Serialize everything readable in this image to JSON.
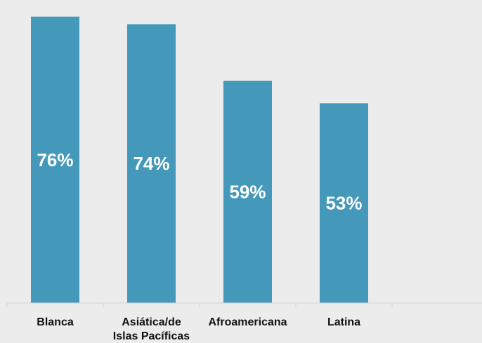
{
  "chart_data": {
    "type": "bar",
    "categories": [
      "Blanca",
      "Asiática/de Islas Pacíficas",
      "Afroamericana",
      "Latina"
    ],
    "category_lines": [
      [
        "Blanca"
      ],
      [
        "Asiática/de",
        "Islas Pacíficas"
      ],
      [
        "Afroamericana"
      ],
      [
        "Latina"
      ]
    ],
    "values": [
      76,
      74,
      59,
      53
    ],
    "data_labels": [
      "76%",
      "74%",
      "59%",
      "53%"
    ],
    "ylim": [
      0,
      78
    ],
    "grid": false,
    "legend": "none",
    "title": "",
    "xlabel": "",
    "ylabel": "",
    "colors": {
      "bar": "#4499ba",
      "background": "#ececec",
      "label_text": "#ffffff",
      "axis_line": "#d4d4d4",
      "category_text": "#111111"
    }
  }
}
